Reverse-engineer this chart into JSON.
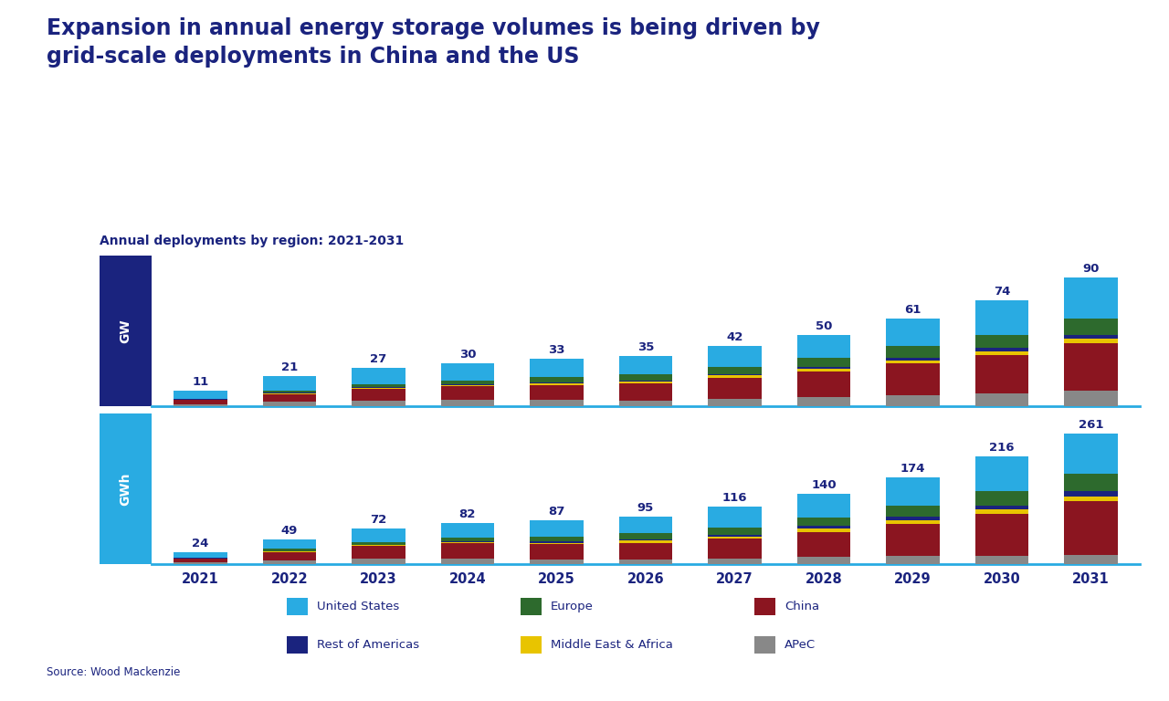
{
  "title": "Expansion in annual energy storage volumes is being driven by\ngrid-scale deployments in China and the US",
  "subtitle": "Annual deployments by region: 2021-2031",
  "source": "Source: Wood Mackenzie",
  "years": [
    2021,
    2022,
    2023,
    2024,
    2025,
    2026,
    2027,
    2028,
    2029,
    2030,
    2031
  ],
  "gw_totals": [
    11,
    21,
    27,
    30,
    33,
    35,
    42,
    50,
    61,
    74,
    90
  ],
  "gwh_totals": [
    24,
    49,
    72,
    82,
    87,
    95,
    116,
    140,
    174,
    216,
    261
  ],
  "gw_data": {
    "APeC": [
      1.5,
      3.0,
      4.0,
      4.5,
      4.5,
      4.0,
      5.0,
      6.5,
      8.0,
      9.0,
      11.0
    ],
    "China": [
      3.0,
      5.5,
      8.0,
      9.5,
      10.5,
      12.0,
      15.0,
      18.0,
      22.0,
      27.0,
      33.0
    ],
    "Middle East & Africa": [
      0.3,
      0.5,
      0.8,
      0.8,
      1.0,
      1.2,
      1.5,
      1.8,
      2.0,
      2.5,
      3.0
    ],
    "Rest of Americas": [
      0.2,
      0.5,
      0.7,
      0.7,
      0.8,
      1.0,
      1.2,
      1.5,
      2.0,
      2.5,
      3.0
    ],
    "Europe": [
      0.5,
      1.5,
      2.0,
      2.5,
      3.5,
      4.0,
      5.0,
      6.0,
      8.0,
      9.0,
      11.0
    ],
    "United States": [
      5.5,
      10.0,
      11.5,
      12.0,
      12.7,
      12.8,
      14.3,
      16.2,
      19.0,
      24.0,
      29.0
    ]
  },
  "gwh_data": {
    "APeC": [
      3.5,
      7.0,
      11.0,
      12.0,
      10.0,
      10.0,
      10.5,
      15.0,
      16.0,
      16.0,
      18.0
    ],
    "China": [
      8.0,
      17.0,
      25.0,
      30.0,
      30.0,
      33.0,
      40.0,
      50.0,
      65.0,
      85.0,
      108.0
    ],
    "Middle East & Africa": [
      0.5,
      1.5,
      2.0,
      2.5,
      3.0,
      4.0,
      5.0,
      6.0,
      7.0,
      8.5,
      9.5
    ],
    "Rest of Americas": [
      0.5,
      1.0,
      1.5,
      2.0,
      2.5,
      3.0,
      4.0,
      5.0,
      7.0,
      8.0,
      10.0
    ],
    "Europe": [
      1.5,
      4.0,
      5.5,
      7.5,
      10.0,
      12.0,
      14.0,
      17.0,
      22.0,
      28.0,
      35.0
    ],
    "United States": [
      10.0,
      18.5,
      27.0,
      28.0,
      31.5,
      33.0,
      42.5,
      47.0,
      57.0,
      70.5,
      80.5
    ]
  },
  "colors": {
    "United States": "#29ABE2",
    "Europe": "#2D6A2D",
    "China": "#8B1520",
    "Rest of Americas": "#1A237E",
    "Middle East & Africa": "#E8C400",
    "APeC": "#888888"
  },
  "gw_label_color": "#1A237E",
  "gwh_label_color": "#1A237E",
  "gw_box_color": "#1A237E",
  "gwh_box_color": "#29ABE2",
  "title_color": "#1A237E",
  "subtitle_color": "#1A237E",
  "background_color": "#FFFFFF",
  "axis_label_color": "#1A237E",
  "axis_line_color": "#29ABE2"
}
